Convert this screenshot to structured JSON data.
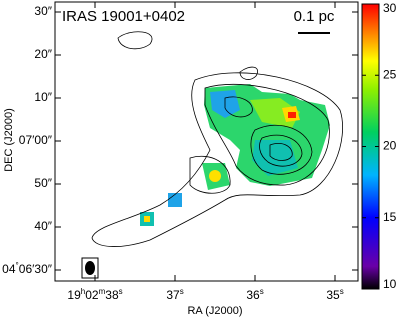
{
  "chart_data": {
    "type": "image",
    "title": "IRAS 19001+0402",
    "scale_bar": "0.1 pc",
    "x_label": "RA (J2000)",
    "y_label": "DEC (J2000)",
    "x_tick_labels": [
      "19h02m38s",
      "37s",
      "36s",
      "35s"
    ],
    "y_tick_labels": [
      "30″",
      "20″",
      "10″",
      "07′00″",
      "50″",
      "40″",
      "04°06′30″"
    ],
    "colorbar": {
      "lim": [
        10,
        30
      ],
      "ticks": [
        10,
        15,
        20,
        25,
        30
      ]
    }
  }
}
